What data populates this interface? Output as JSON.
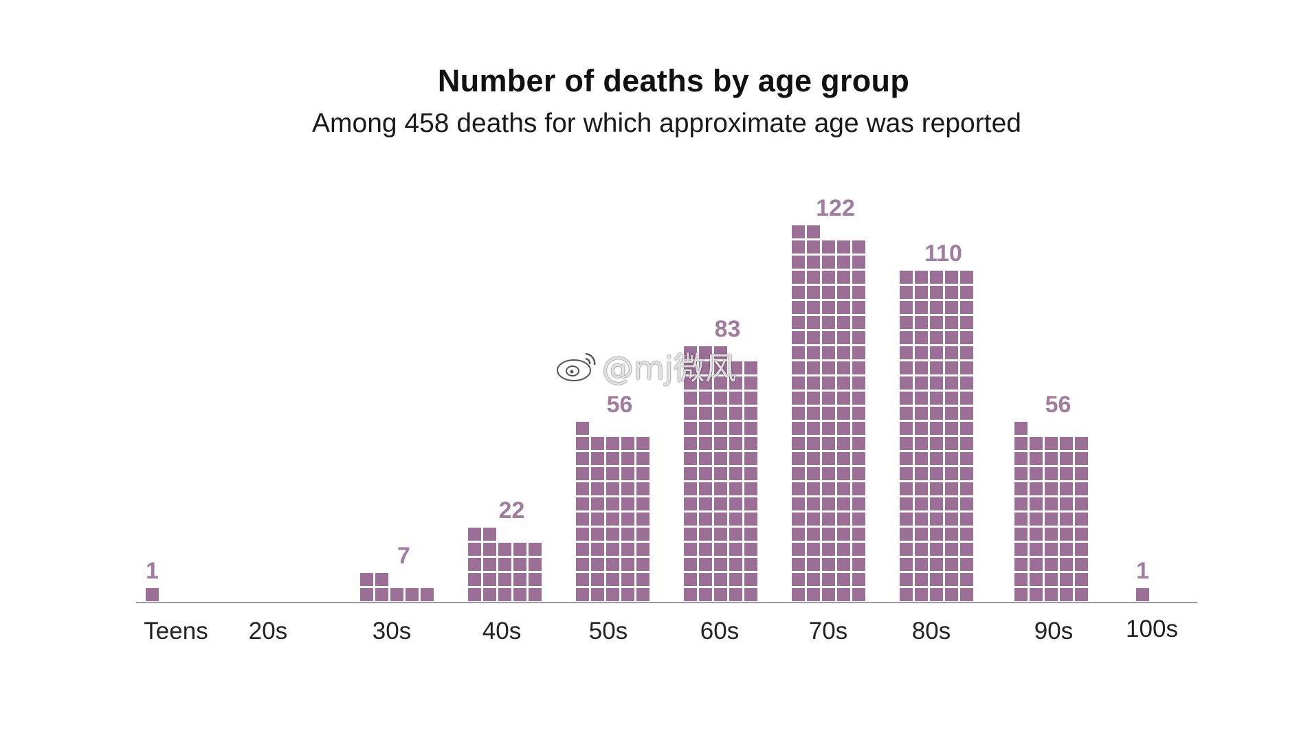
{
  "chart_data": {
    "type": "bar",
    "title": "Number of deaths by age group",
    "subtitle": "Among 458 deaths for which approximate age was reported",
    "categories": [
      "Teens",
      "20s",
      "30s",
      "40s",
      "50s",
      "60s",
      "70s",
      "80s",
      "90s",
      "100s"
    ],
    "values": [
      1,
      0,
      7,
      22,
      56,
      83,
      122,
      110,
      56,
      1
    ],
    "data_labels": [
      "1",
      "",
      "7",
      "22",
      "56",
      "83",
      "122",
      "110",
      "56",
      "1"
    ],
    "units_per_row": 5,
    "color": "#9c6f96",
    "label_color": "#a27c9e",
    "grid": false,
    "legend": "none"
  },
  "watermark": {
    "text": "@mj微风",
    "logo": "weibo-logo-icon"
  }
}
